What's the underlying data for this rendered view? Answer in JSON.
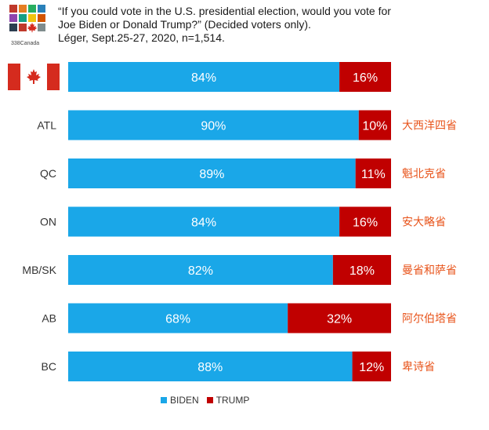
{
  "header": {
    "logo_text": "338Canada",
    "title_lines": [
      "“If you could vote in the U.S. presidential election, would you vote for",
      "Joe Biden or Donald Trump?” (Decided voters only).",
      "Léger, Sept.25-27, 2020, n=1,514."
    ]
  },
  "colors": {
    "biden": "#1aa7e8",
    "trump": "#c00000",
    "annotation": "#e8541b"
  },
  "chart_data": {
    "type": "bar",
    "orientation": "horizontal",
    "stacked": true,
    "title": "“If you could vote in the U.S. presidential election, would you vote for Joe Biden or Donald Trump?” (Decided voters only).",
    "categories": [
      "CAN",
      "ATL",
      "QC",
      "ON",
      "MB/SK",
      "AB",
      "BC"
    ],
    "category_labels": [
      "",
      "ATL",
      "QC",
      "ON",
      "MB/SK",
      "AB",
      "BC"
    ],
    "annotations": [
      "",
      "大西洋四省",
      "魁北克省",
      "安大略省",
      "曼省和萨省",
      "阿尔伯塔省",
      "卑诗省"
    ],
    "series": [
      {
        "name": "BIDEN",
        "values": [
          84,
          90,
          89,
          84,
          82,
          68,
          88
        ],
        "labels": [
          "84%",
          "90%",
          "89%",
          "84%",
          "82%",
          "68%",
          "88%"
        ]
      },
      {
        "name": "TRUMP",
        "values": [
          16,
          10,
          11,
          16,
          18,
          32,
          12
        ],
        "labels": [
          "16%",
          "10%",
          "11%",
          "16%",
          "18%",
          "32%",
          "12%"
        ]
      }
    ],
    "xlim": [
      0,
      100
    ],
    "legend": "bottom"
  }
}
